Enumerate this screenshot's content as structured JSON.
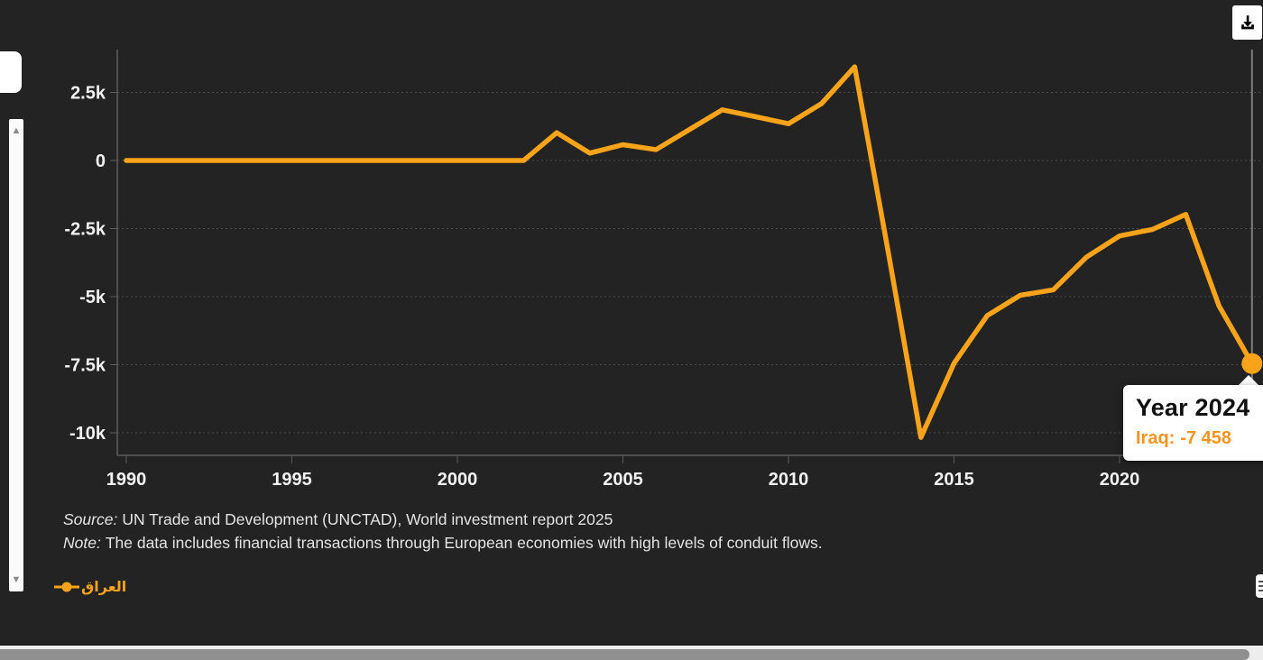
{
  "colors": {
    "background": "#232323",
    "accent": "#f8a31a",
    "tooltip_orange": "#f7941e",
    "axis_text": "#f2f2f2",
    "axis_line": "#5c5c5c",
    "gridline": "#4b4b4b",
    "crosshair": "#7d7d7d"
  },
  "icons": {
    "download": "download-icon",
    "menu": "menu-icon",
    "scroll_up_glyph": "▲",
    "scroll_down_glyph": "▼"
  },
  "scrollbar": {
    "up_glyph": "▲",
    "down_glyph": "▼"
  },
  "tooltip": {
    "title": "Year 2024",
    "series_label": "Iraq:",
    "value": "-7 458"
  },
  "legend": {
    "items": [
      {
        "label": "العراق",
        "color": "#f8a31a"
      }
    ]
  },
  "footnotes": {
    "source_label": "Source:",
    "source_text": "UN Trade and Development (UNCTAD), World investment report 2025",
    "note_label": "Note:",
    "note_text": "The data includes financial transactions through European economies with high levels of conduit flows."
  },
  "chart_data": {
    "type": "line",
    "title": "",
    "xlabel": "",
    "ylabel": "",
    "grid": "horizontal-dotted",
    "legend_position": "bottom-left",
    "x": [
      1990,
      1991,
      1992,
      1993,
      1994,
      1995,
      1996,
      1997,
      1998,
      1999,
      2000,
      2001,
      2002,
      2003,
      2004,
      2005,
      2006,
      2007,
      2008,
      2009,
      2010,
      2011,
      2012,
      2013,
      2014,
      2015,
      2016,
      2017,
      2018,
      2019,
      2020,
      2021,
      2022,
      2023,
      2024
    ],
    "series": [
      {
        "name": "العراق",
        "color": "#f8a31a",
        "values": [
          0,
          0,
          0,
          0,
          0,
          0,
          0,
          0,
          0,
          0,
          0,
          0,
          0,
          1020,
          270,
          580,
          400,
          1130,
          1860,
          1610,
          1350,
          2090,
          3440,
          -3270,
          -10170,
          -7450,
          -5700,
          -4950,
          -4750,
          -3550,
          -2770,
          -2530,
          -1980,
          -5330,
          -7458
        ]
      }
    ],
    "x_ticks": [
      1990,
      1995,
      2000,
      2005,
      2010,
      2015,
      2020
    ],
    "y_ticks": [
      {
        "value": 2500,
        "label": "2.5k"
      },
      {
        "value": 0,
        "label": "0"
      },
      {
        "value": -2500,
        "label": "-2.5k"
      },
      {
        "value": -5000,
        "label": "-5k"
      },
      {
        "value": -7500,
        "label": "-7.5k"
      },
      {
        "value": -10000,
        "label": "-10k"
      }
    ],
    "ylim": [
      -10850,
      4050
    ],
    "xlim": [
      1989.7,
      2024.3
    ],
    "crosshair_year": 2024,
    "highlight_point": {
      "x": 2024,
      "value": -7458
    }
  }
}
